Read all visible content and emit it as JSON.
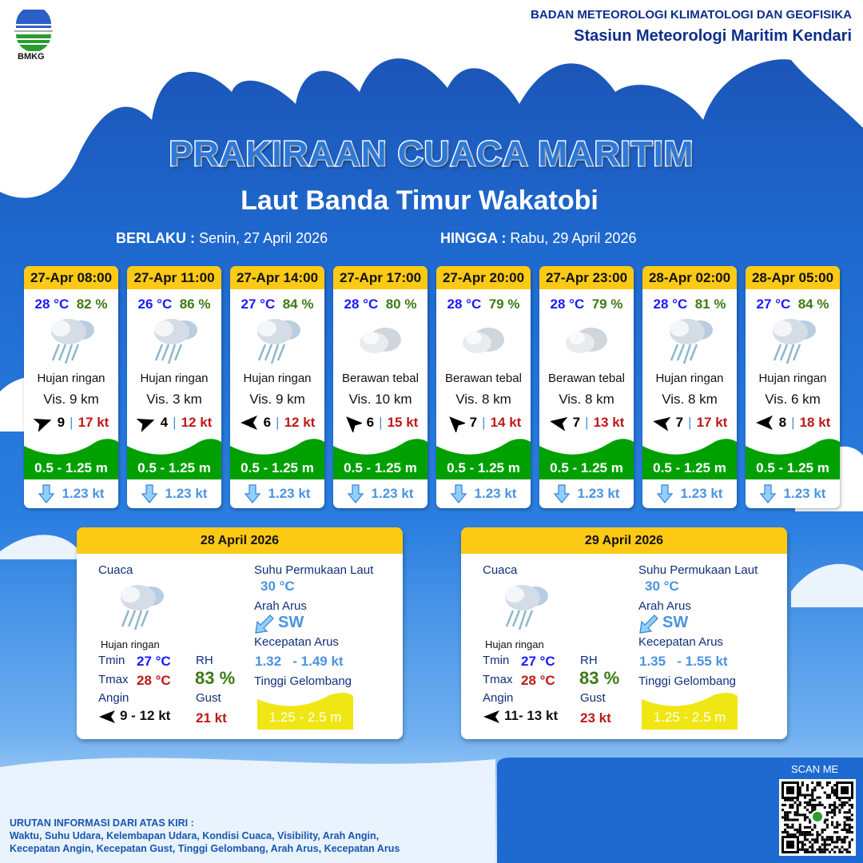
{
  "header": {
    "agency": "BADAN METEOROLOGI KLIMATOLOGI DAN GEOFISIKA",
    "station": "Stasiun Meteorologi Maritim Kendari",
    "logo_text": "BMKG"
  },
  "title": "PRAKIRAAN CUACA MARITIM",
  "area": "Laut Banda Timur Wakatobi",
  "validity": {
    "from_label": "BERLAKU :",
    "from": "Senin, 27 April 2026",
    "to_label": "HINGGA :",
    "to": "Rabu, 29 April 2026"
  },
  "colors": {
    "header_yellow": "#fcc914",
    "wave_green": "#00a000",
    "wave_yellow": "#f0e614",
    "temp": "#1a1aff",
    "humidity": "#3d7a12",
    "gust": "#c01818"
  },
  "cards": [
    {
      "time": "27-Apr 08:00",
      "temp": "28 °C",
      "rh": "82 %",
      "icon": "light-rain-icon",
      "cond": "Hujan ringan",
      "vis": "Vis.  9 km",
      "wind_dir_deg": -20,
      "wind": "9",
      "gust": "17 kt",
      "wave": "0.5 - 1.25 m",
      "current": "1.23 kt"
    },
    {
      "time": "27-Apr 11:00",
      "temp": "26 °C",
      "rh": "86 %",
      "icon": "light-rain-icon",
      "cond": "Hujan ringan",
      "vis": "Vis.  3 km",
      "wind_dir_deg": -20,
      "wind": "4",
      "gust": "12 kt",
      "wave": "0.5 - 1.25 m",
      "current": "1.23 kt"
    },
    {
      "time": "27-Apr 14:00",
      "temp": "27 °C",
      "rh": "84 %",
      "icon": "light-rain-icon",
      "cond": "Hujan ringan",
      "vis": "Vis.  9 km",
      "wind_dir_deg": 180,
      "wind": "6",
      "gust": "12 kt",
      "wave": "0.5 - 1.25 m",
      "current": "1.23 kt"
    },
    {
      "time": "27-Apr 17:00",
      "temp": "28 °C",
      "rh": "80 %",
      "icon": "overcast-icon",
      "cond": "Berawan tebal",
      "vis": "Vis.  10 km",
      "wind_dir_deg": 225,
      "wind": "6",
      "gust": "15 kt",
      "wave": "0.5 - 1.25 m",
      "current": "1.23 kt"
    },
    {
      "time": "27-Apr 20:00",
      "temp": "28 °C",
      "rh": "79 %",
      "icon": "overcast-icon",
      "cond": "Berawan tebal",
      "vis": "Vis.  8 km",
      "wind_dir_deg": 225,
      "wind": "7",
      "gust": "14 kt",
      "wave": "0.5 - 1.25 m",
      "current": "1.23 kt"
    },
    {
      "time": "27-Apr 23:00",
      "temp": "28 °C",
      "rh": "79 %",
      "icon": "overcast-icon",
      "cond": "Berawan tebal",
      "vis": "Vis.  8 km",
      "wind_dir_deg": 190,
      "wind": "7",
      "gust": "13 kt",
      "wave": "0.5 - 1.25 m",
      "current": "1.23 kt"
    },
    {
      "time": "28-Apr 02:00",
      "temp": "28 °C",
      "rh": "81 %",
      "icon": "light-rain-icon",
      "cond": "Hujan ringan",
      "vis": "Vis.  8 km",
      "wind_dir_deg": 190,
      "wind": "7",
      "gust": "17 kt",
      "wave": "0.5 - 1.25 m",
      "current": "1.23 kt"
    },
    {
      "time": "28-Apr 05:00",
      "temp": "27 °C",
      "rh": "84 %",
      "icon": "light-rain-icon",
      "cond": "Hujan ringan",
      "vis": "Vis.  6 km",
      "wind_dir_deg": 180,
      "wind": "8",
      "gust": "18 kt",
      "wave": "0.5 - 1.25 m",
      "current": "1.23 kt"
    }
  ],
  "labels": {
    "cuaca": "Cuaca",
    "tmin": "Tmin",
    "tmax": "Tmax",
    "rh": "RH",
    "angin": "Angin",
    "gust": "Gust",
    "sst": "Suhu Permukaan Laut",
    "arah_arus": "Arah Arus",
    "kec_arus": "Kecepatan Arus",
    "tinggi": "Tinggi Gelombang"
  },
  "panels": [
    {
      "date": "28 April 2026",
      "cond": "Hujan ringan",
      "tmin": "27 °C",
      "tmax": "28 °C",
      "rh": "83 %",
      "wind": "9  - 12 kt",
      "gust": "21 kt",
      "sst": "30 °C",
      "cur_dir": "SW",
      "cur_speed": "1.32   - 1.49 kt",
      "wave": "1.25 - 2.5 m"
    },
    {
      "date": "29 April 2026",
      "cond": "Hujan ringan",
      "tmin": "27 °C",
      "tmax": "28 °C",
      "rh": "83 %",
      "wind": "11- 13 kt",
      "gust": "23 kt",
      "sst": "30 °C",
      "cur_dir": "SW",
      "cur_speed": "1.35   - 1.55 kt",
      "wave": "1.25 - 2.5 m"
    }
  ],
  "scan": "SCAN ME",
  "footer": {
    "heading": "URUTAN INFORMASI DARI ATAS KIRI :",
    "line1": "Waktu, Suhu Udara, Kelembapan Udara, Kondisi Cuaca, Visibility, Arah Angin,",
    "line2": "Kecepatan Angin, Kecepatan Gust, Tinggi Gelombang, Arah Arus, Kecepatan Arus"
  }
}
